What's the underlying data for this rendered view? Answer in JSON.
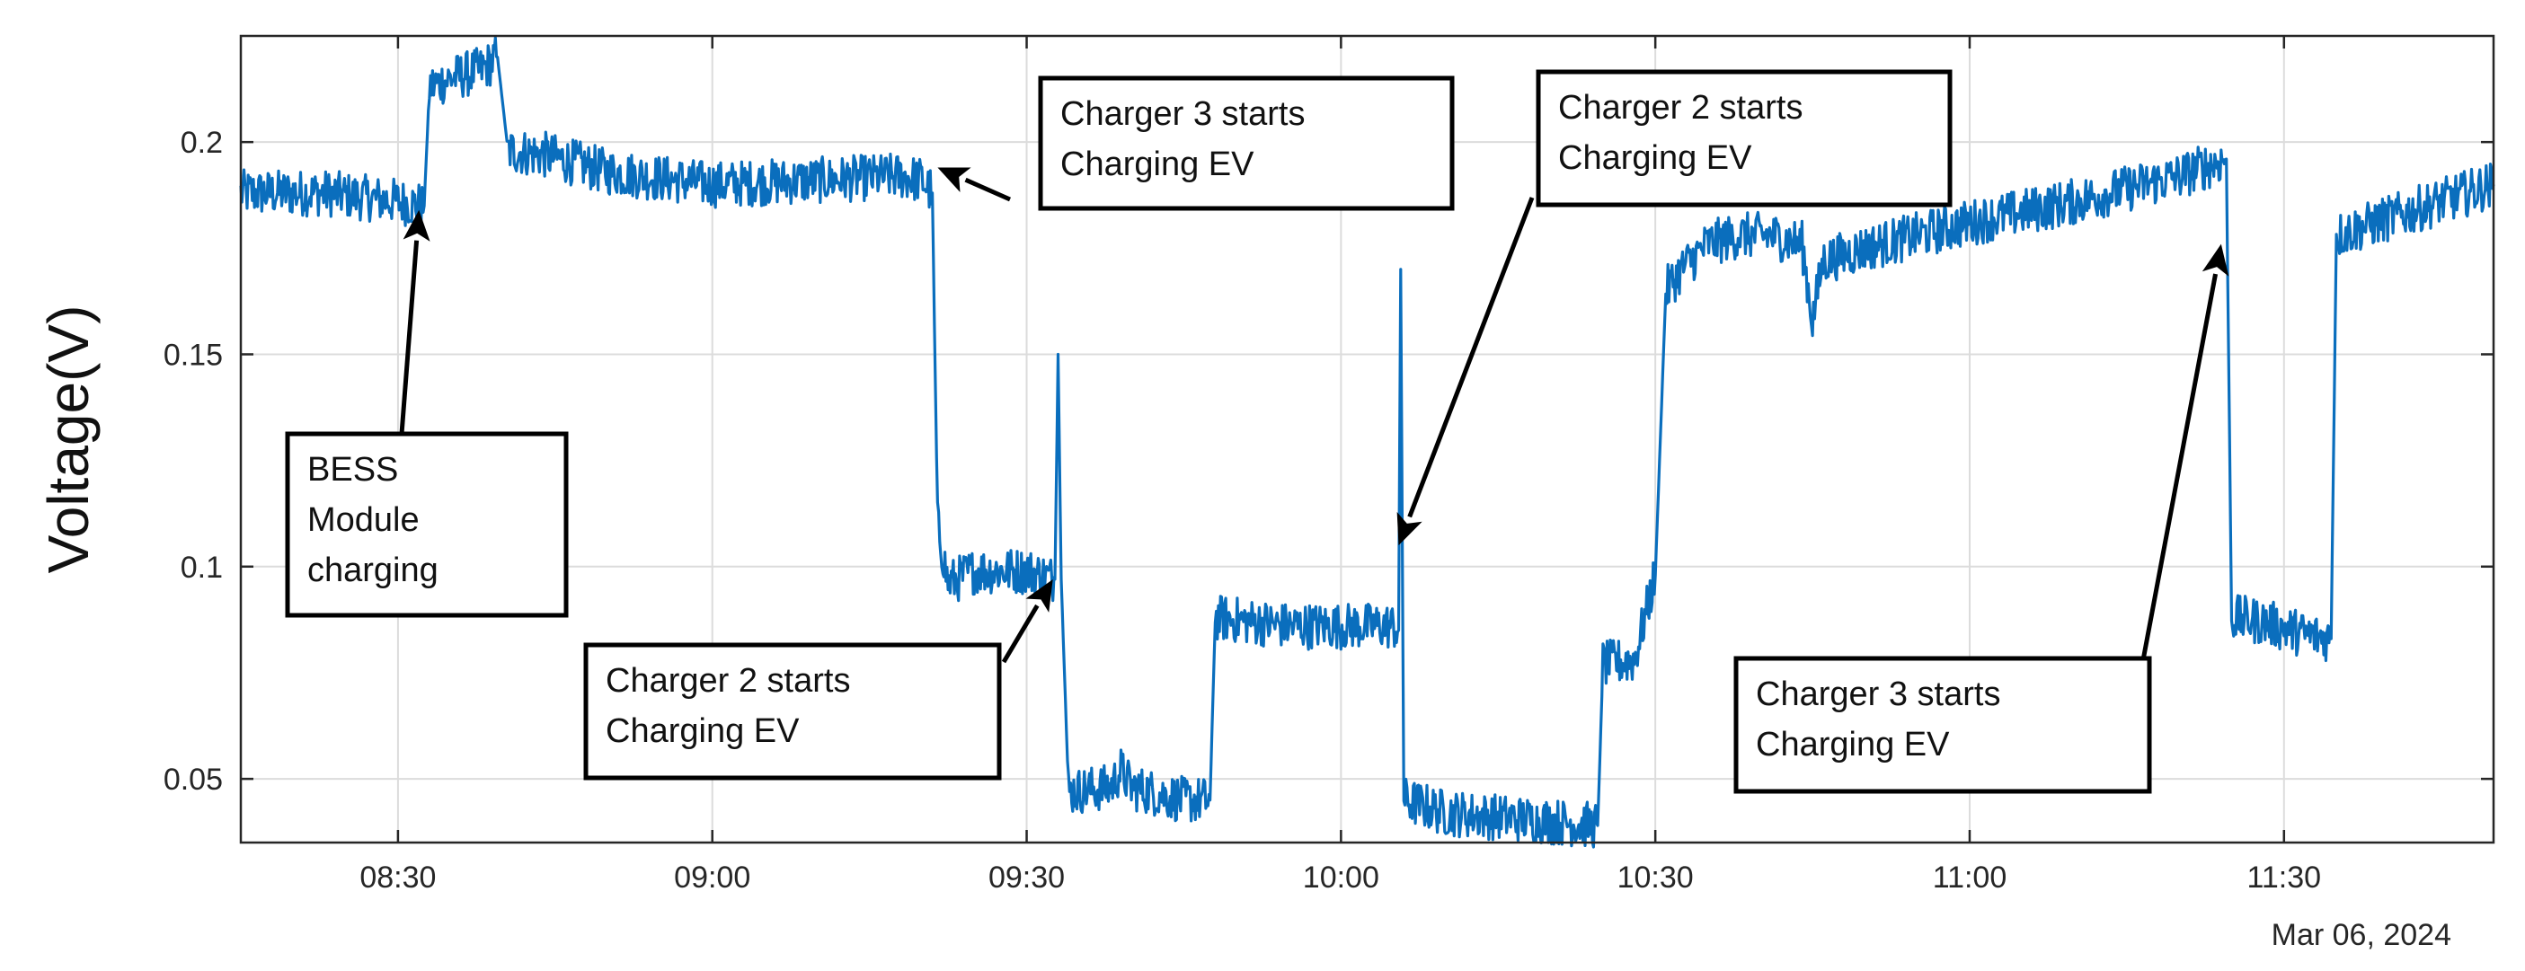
{
  "chart_data": {
    "type": "line",
    "title": "",
    "xlabel": "",
    "ylabel": "Voltage(V)",
    "date_label": "Mar 06, 2024",
    "x_unit": "minutes after midnight, Mar 06, 2024",
    "xlim": [
      495,
      710
    ],
    "ylim": [
      0.035,
      0.225
    ],
    "grid": true,
    "x_ticks": [
      {
        "value": 510,
        "label": "08:30"
      },
      {
        "value": 540,
        "label": "09:00"
      },
      {
        "value": 570,
        "label": "09:30"
      },
      {
        "value": 600,
        "label": "10:00"
      },
      {
        "value": 630,
        "label": "10:30"
      },
      {
        "value": 660,
        "label": "11:00"
      },
      {
        "value": 690,
        "label": "11:30"
      }
    ],
    "y_ticks": [
      {
        "value": 0.05,
        "label": "0.05"
      },
      {
        "value": 0.1,
        "label": "0.1"
      },
      {
        "value": 0.15,
        "label": "0.15"
      },
      {
        "value": 0.2,
        "label": "0.2"
      }
    ],
    "series": [
      {
        "color": "#0a6ebd",
        "points": [
          [
            495,
            0.188
          ],
          [
            503,
            0.188
          ],
          [
            510,
            0.186
          ],
          [
            512.5,
            0.185
          ],
          [
            513,
            0.213
          ],
          [
            515,
            0.215
          ],
          [
            518,
            0.217
          ],
          [
            519.5,
            0.22
          ],
          [
            520.5,
            0.198
          ],
          [
            524,
            0.197
          ],
          [
            530,
            0.193
          ],
          [
            540,
            0.19
          ],
          [
            550,
            0.191
          ],
          [
            558,
            0.192
          ],
          [
            560,
            0.191
          ],
          [
            561,
            0.188
          ],
          [
            561.5,
            0.11
          ],
          [
            562.5,
            0.096
          ],
          [
            565,
            0.099
          ],
          [
            570,
            0.099
          ],
          [
            572.7,
            0.097
          ],
          [
            573,
            0.15
          ],
          [
            573.3,
            0.097
          ],
          [
            574,
            0.047
          ],
          [
            578,
            0.048
          ],
          [
            579,
            0.052
          ],
          [
            580,
            0.048
          ],
          [
            585,
            0.045
          ],
          [
            587.5,
            0.045
          ],
          [
            588,
            0.088
          ],
          [
            595,
            0.086
          ],
          [
            605,
            0.086
          ],
          [
            605.5,
            0.085
          ],
          [
            605.7,
            0.17
          ],
          [
            606,
            0.045
          ],
          [
            610,
            0.042
          ],
          [
            620,
            0.04
          ],
          [
            624.5,
            0.039
          ],
          [
            625,
            0.077
          ],
          [
            628,
            0.078
          ],
          [
            629,
            0.088
          ],
          [
            630,
            0.098
          ],
          [
            631,
            0.165
          ],
          [
            632.5,
            0.17
          ],
          [
            635,
            0.176
          ],
          [
            638,
            0.178
          ],
          [
            641,
            0.178
          ],
          [
            644,
            0.176
          ],
          [
            645,
            0.158
          ],
          [
            646,
            0.172
          ],
          [
            650,
            0.175
          ],
          [
            660,
            0.181
          ],
          [
            670,
            0.186
          ],
          [
            680,
            0.192
          ],
          [
            684.5,
            0.196
          ],
          [
            685,
            0.088
          ],
          [
            688,
            0.087
          ],
          [
            692,
            0.084
          ],
          [
            694.5,
            0.083
          ],
          [
            695,
            0.178
          ],
          [
            700,
            0.182
          ],
          [
            705,
            0.186
          ],
          [
            710,
            0.19
          ]
        ]
      }
    ],
    "annotations": [
      {
        "lines": [
          "BESS",
          "Module",
          "charging"
        ],
        "target_x": 512,
        "target_y": 0.184
      },
      {
        "lines": [
          "Charger 3 starts",
          "Charging EV"
        ],
        "target_x": 561.5,
        "target_y": 0.194
      },
      {
        "lines": [
          "Charger 2 starts",
          "Charging EV"
        ],
        "target_x": 572.5,
        "target_y": 0.097
      },
      {
        "lines": [
          "Charger 2 starts",
          "Charging EV"
        ],
        "target_x": 605.5,
        "target_y": 0.105
      },
      {
        "lines": [
          "Charger 3 starts",
          "Charging EV"
        ],
        "target_x": 684,
        "target_y": 0.176
      }
    ]
  }
}
